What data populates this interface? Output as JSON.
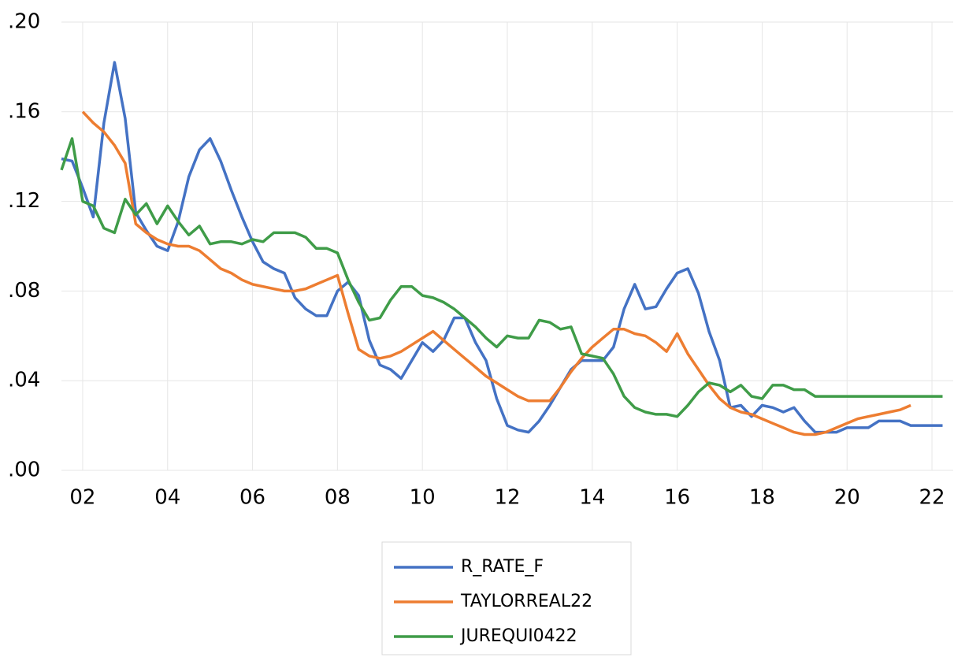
{
  "chart_data": {
    "type": "line",
    "x": [
      1.5,
      1.75,
      2,
      2.25,
      2.5,
      2.75,
      3,
      3.25,
      3.5,
      3.75,
      4,
      4.25,
      4.5,
      4.75,
      5,
      5.25,
      5.5,
      5.75,
      6,
      6.25,
      6.5,
      6.75,
      7,
      7.25,
      7.5,
      7.75,
      8,
      8.25,
      8.5,
      8.75,
      9,
      9.25,
      9.5,
      9.75,
      10,
      10.25,
      10.5,
      10.75,
      11,
      11.25,
      11.5,
      11.75,
      12,
      12.25,
      12.5,
      12.75,
      13,
      13.25,
      13.5,
      13.75,
      14,
      14.25,
      14.5,
      14.75,
      15,
      15.25,
      15.5,
      15.75,
      16,
      16.25,
      16.5,
      16.75,
      17,
      17.25,
      17.5,
      17.75,
      18,
      18.25,
      18.5,
      18.75,
      19,
      19.25,
      19.5,
      19.75,
      20,
      20.25,
      20.5,
      20.75,
      21,
      21.25,
      21.5,
      21.75,
      22,
      22.25
    ],
    "series": [
      {
        "name": "R_RATE_F",
        "color": "#4472c4",
        "values": [
          0.139,
          0.138,
          0.126,
          0.113,
          0.155,
          0.182,
          0.157,
          0.115,
          0.107,
          0.1,
          0.098,
          0.111,
          0.131,
          0.143,
          0.148,
          0.138,
          0.125,
          0.113,
          0.102,
          0.093,
          0.09,
          0.088,
          0.077,
          0.072,
          0.069,
          0.069,
          0.08,
          0.084,
          0.078,
          0.058,
          0.047,
          0.045,
          0.041,
          0.049,
          0.057,
          0.053,
          0.058,
          0.068,
          0.068,
          0.057,
          0.049,
          0.032,
          0.02,
          0.018,
          0.017,
          0.022,
          0.029,
          0.037,
          0.045,
          0.049,
          0.049,
          0.049,
          0.055,
          0.072,
          0.083,
          0.072,
          0.073,
          0.081,
          0.088,
          0.09,
          0.079,
          0.062,
          0.049,
          0.028,
          0.029,
          0.024,
          0.029,
          0.028,
          0.026,
          0.028,
          0.022,
          0.017,
          0.017,
          0.017,
          0.019,
          0.019,
          0.019,
          0.022,
          0.022,
          0.022,
          0.02,
          0.02,
          0.02,
          0.02
        ]
      },
      {
        "name": "TAYLORREAL22",
        "color": "#ed7d31",
        "values": [
          null,
          null,
          0.16,
          0.155,
          0.151,
          0.145,
          0.137,
          0.11,
          0.106,
          0.103,
          0.101,
          0.1,
          0.1,
          0.098,
          0.094,
          0.09,
          0.088,
          0.085,
          0.083,
          0.082,
          0.081,
          0.08,
          0.08,
          0.081,
          0.083,
          0.085,
          0.087,
          0.07,
          0.054,
          0.051,
          0.05,
          0.051,
          0.053,
          0.056,
          0.059,
          0.062,
          0.058,
          0.054,
          0.05,
          0.046,
          0.042,
          0.039,
          0.036,
          0.033,
          0.031,
          0.031,
          0.031,
          0.037,
          0.044,
          0.05,
          0.055,
          0.059,
          0.063,
          0.063,
          0.061,
          0.06,
          0.057,
          0.053,
          0.061,
          0.052,
          0.045,
          0.038,
          0.032,
          0.028,
          0.026,
          0.025,
          0.023,
          0.021,
          0.019,
          0.017,
          0.016,
          0.016,
          0.017,
          0.019,
          0.021,
          0.023,
          0.024,
          0.025,
          0.026,
          0.027,
          0.029,
          null,
          null,
          null
        ]
      },
      {
        "name": "JUREQUI0422",
        "color": "#3f9c48",
        "values": [
          0.134,
          0.148,
          0.12,
          0.118,
          0.108,
          0.106,
          0.121,
          0.114,
          0.119,
          0.11,
          0.118,
          0.111,
          0.105,
          0.109,
          0.101,
          0.102,
          0.102,
          0.101,
          0.103,
          0.102,
          0.106,
          0.106,
          0.106,
          0.104,
          0.099,
          0.099,
          0.097,
          0.085,
          0.075,
          0.067,
          0.068,
          0.076,
          0.082,
          0.082,
          0.078,
          0.077,
          0.075,
          0.072,
          0.068,
          0.064,
          0.059,
          0.055,
          0.06,
          0.059,
          0.059,
          0.067,
          0.066,
          0.063,
          0.064,
          0.052,
          0.051,
          0.05,
          0.043,
          0.033,
          0.028,
          0.026,
          0.025,
          0.025,
          0.024,
          0.029,
          0.035,
          0.039,
          0.038,
          0.035,
          0.038,
          0.033,
          0.032,
          0.038,
          0.038,
          0.036,
          0.036,
          0.033,
          0.033,
          0.033,
          0.033,
          0.033,
          0.033,
          0.033,
          0.033,
          0.033,
          0.033,
          0.033,
          0.033,
          0.033
        ]
      }
    ],
    "xlim": [
      1.5,
      22.5
    ],
    "xticks": [
      {
        "value": 2,
        "label": "02"
      },
      {
        "value": 4,
        "label": "04"
      },
      {
        "value": 6,
        "label": "06"
      },
      {
        "value": 8,
        "label": "08"
      },
      {
        "value": 10,
        "label": "10"
      },
      {
        "value": 12,
        "label": "12"
      },
      {
        "value": 14,
        "label": "14"
      },
      {
        "value": 16,
        "label": "16"
      },
      {
        "value": 18,
        "label": "18"
      },
      {
        "value": 20,
        "label": "20"
      },
      {
        "value": 22,
        "label": "22"
      }
    ],
    "ylim": [
      0,
      0.2
    ],
    "yticks": [
      {
        "value": 0,
        "label": ".00"
      },
      {
        "value": 0.04,
        "label": ".04"
      },
      {
        "value": 0.08,
        "label": ".08"
      },
      {
        "value": 0.12,
        "label": ".12"
      },
      {
        "value": 0.16,
        "label": ".16"
      },
      {
        "value": 0.2,
        "label": ".20"
      }
    ],
    "grid": true,
    "legend": "bottom"
  }
}
